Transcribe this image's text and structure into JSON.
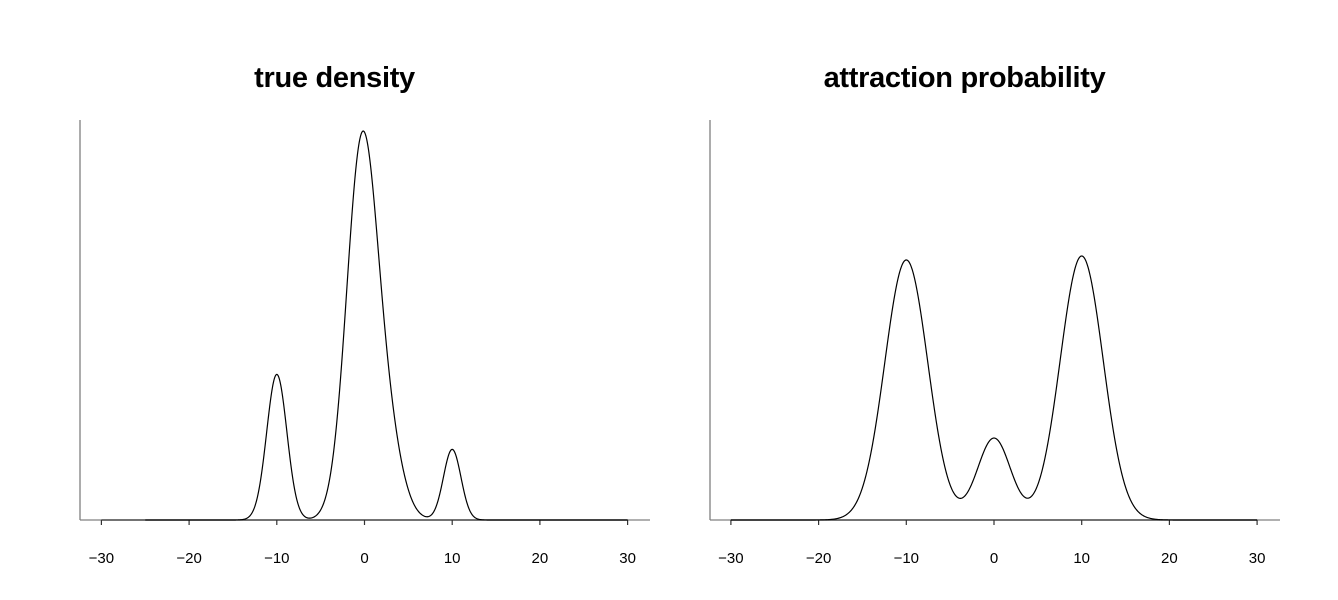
{
  "chart_data": [
    {
      "type": "line",
      "title": "true density",
      "xlabel": "",
      "ylabel": "",
      "xlim": [
        -32.5,
        32.5
      ],
      "xticks": [
        -30,
        -20,
        -10,
        0,
        10,
        20,
        30
      ],
      "xtick_labels": [
        "−30",
        "−20",
        "−10",
        "0",
        "10",
        "20",
        "30"
      ],
      "yticks": [],
      "grid": false,
      "legend": null,
      "description": "Trimodal density: small peak at -10, dominant peak near 0 (slightly right-skewed), small peak at 10",
      "peaks": [
        {
          "x": -10,
          "relative_height": 0.365
        },
        {
          "x": 0,
          "relative_height": 1.0
        },
        {
          "x": 10,
          "relative_height": 0.177
        }
      ],
      "components": [
        {
          "mu": -10,
          "sigma": 1.15,
          "amp": 0.365
        },
        {
          "mu": -0.3,
          "sigma": 1.75,
          "amp": 0.93
        },
        {
          "mu": 2.6,
          "sigma": 1.7,
          "amp": 0.18
        },
        {
          "mu": 10,
          "sigma": 1.0,
          "amp": 0.177
        }
      ]
    },
    {
      "type": "line",
      "title": "attraction probability",
      "xlabel": "",
      "ylabel": "",
      "xlim": [
        -32.5,
        32.5
      ],
      "xticks": [
        -30,
        -20,
        -10,
        0,
        10,
        20,
        30
      ],
      "xtick_labels": [
        "−30",
        "−20",
        "−10",
        "0",
        "10",
        "20",
        "30"
      ],
      "yticks": [],
      "grid": false,
      "legend": null,
      "description": "Smoothed trimodal curve: two tall peaks at -10 and 10, small bump at 0 with minima near -4 and 4",
      "peaks": [
        {
          "x": -10,
          "relative_height": 0.99
        },
        {
          "x": 0,
          "relative_height": 0.34
        },
        {
          "x": 10,
          "relative_height": 1.0
        }
      ],
      "minima": [
        {
          "x": -4.2,
          "relative_height": 0.21
        },
        {
          "x": 4.0,
          "relative_height": 0.19
        }
      ],
      "components": [
        {
          "mu": -10,
          "sigma": 2.45,
          "amp": 0.985
        },
        {
          "mu": 0,
          "sigma": 1.9,
          "amp": 0.31
        },
        {
          "mu": 10,
          "sigma": 2.45,
          "amp": 1.0
        }
      ]
    }
  ],
  "panels": [
    {
      "title": "true density"
    },
    {
      "title": "attraction probability"
    }
  ],
  "style": {
    "curve_color": "#000000",
    "axis_color": "#333333",
    "axis_light_color": "#808080"
  }
}
